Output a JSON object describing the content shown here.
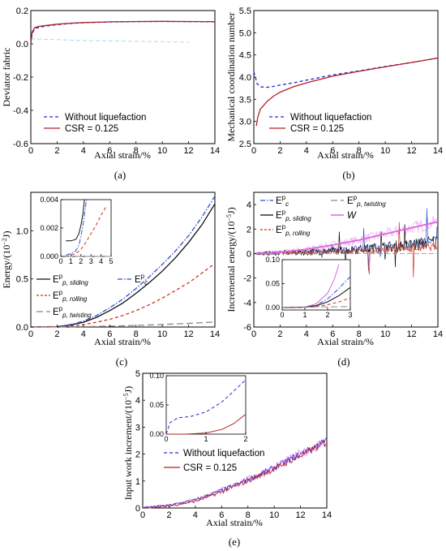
{
  "figure": {
    "captions": [
      "(a)",
      "(b)",
      "(c)",
      "(d)",
      "(e)"
    ]
  },
  "colors": {
    "without": "#2a2ad6",
    "csr": "#b22222",
    "sliding": "#111111",
    "ec": "#2f4fcf",
    "rolling": "#cc3322",
    "twisting": "#888888",
    "w": "#dd66dd",
    "spread": "#f3a6f3"
  },
  "chart_data": [
    {
      "id": "a",
      "type": "line",
      "xlabel": "Axial strain/%",
      "ylabel": "Deviator fabric",
      "xlim": [
        0,
        14
      ],
      "ylim": [
        -0.6,
        0.2
      ],
      "xticks": [
        0,
        2,
        4,
        6,
        8,
        10,
        12,
        14
      ],
      "yticks": [
        -0.6,
        -0.4,
        -0.2,
        0.0,
        0.2
      ],
      "ytick_labels": [
        "-0.6",
        "-0.4",
        "-0.2",
        "0.0",
        "0.2"
      ],
      "legend_position": "lower-left",
      "series": [
        {
          "name": "Without liquefaction",
          "style": "dash",
          "color_key": "without",
          "x": [
            0,
            0.1,
            0.3,
            0.6,
            1,
            2,
            3,
            4,
            6,
            8,
            10,
            12,
            14
          ],
          "y": [
            0.0,
            0.06,
            0.092,
            0.098,
            0.105,
            0.115,
            0.122,
            0.127,
            0.131,
            0.133,
            0.134,
            0.133,
            0.132
          ]
        },
        {
          "name": "CSR = 0.125",
          "style": "solid",
          "color_key": "csr",
          "x": [
            0,
            0.1,
            0.3,
            0.6,
            1,
            2,
            3,
            4,
            6,
            8,
            10,
            12,
            14
          ],
          "y": [
            0.0,
            0.07,
            0.098,
            0.104,
            0.109,
            0.118,
            0.124,
            0.128,
            0.132,
            0.134,
            0.135,
            0.134,
            0.133
          ]
        }
      ]
    },
    {
      "id": "b",
      "type": "line",
      "xlabel": "Axial strain/%",
      "ylabel": "Mechanical coordination number",
      "xlim": [
        0,
        14
      ],
      "ylim": [
        2.5,
        5.5
      ],
      "xticks": [
        0,
        2,
        4,
        6,
        8,
        10,
        12,
        14
      ],
      "yticks": [
        2.5,
        3.0,
        3.5,
        4.0,
        4.5,
        5.0,
        5.5
      ],
      "ytick_labels": [
        "2.5",
        "3.0",
        "3.5",
        "4.0",
        "4.5",
        "5.0",
        "5.5"
      ],
      "legend_position": "lower-left",
      "series": [
        {
          "name": "Without liquefaction",
          "style": "dash",
          "color_key": "without",
          "x": [
            0,
            0.1,
            0.25,
            0.5,
            1,
            1.5,
            2,
            3,
            4,
            6,
            8,
            10,
            12,
            14
          ],
          "y": [
            4.12,
            4.02,
            3.85,
            3.78,
            3.77,
            3.79,
            3.82,
            3.87,
            3.93,
            4.05,
            4.14,
            4.24,
            4.33,
            4.43
          ]
        },
        {
          "name": "CSR = 0.125",
          "style": "solid",
          "color_key": "csr",
          "x": [
            0.2,
            0.3,
            0.5,
            0.8,
            1,
            1.5,
            2,
            3,
            4,
            6,
            8,
            10,
            12,
            14
          ],
          "y": [
            2.9,
            3.1,
            3.28,
            3.38,
            3.45,
            3.57,
            3.66,
            3.78,
            3.87,
            4.02,
            4.13,
            4.23,
            4.33,
            4.43
          ]
        }
      ]
    },
    {
      "id": "c",
      "type": "line",
      "xlabel": "Axial strain/%",
      "ylabel": "Energy/(10^-2 J)",
      "xlim": [
        0,
        14
      ],
      "ylim": [
        0,
        1.4
      ],
      "xticks": [
        0,
        2,
        4,
        6,
        8,
        10,
        12,
        14
      ],
      "yticks": [
        0.0,
        0.5,
        1.0
      ],
      "ytick_labels": [
        "0.0",
        "0.5",
        "1.0"
      ],
      "legend_position": "left",
      "series": [
        {
          "name": "E p, sliding",
          "style": "solid",
          "color_key": "sliding",
          "x": [
            0,
            2,
            3,
            4,
            5,
            6,
            7,
            8,
            9,
            10,
            11,
            12,
            13,
            14
          ],
          "y": [
            0,
            0.004,
            0.02,
            0.05,
            0.1,
            0.17,
            0.25,
            0.35,
            0.46,
            0.58,
            0.72,
            0.88,
            1.06,
            1.28
          ]
        },
        {
          "name": "E c",
          "style": "dashdot",
          "color_key": "ec",
          "x": [
            0,
            2,
            3,
            4,
            5,
            6,
            7,
            8,
            9,
            10,
            11,
            12,
            13,
            14
          ],
          "y": [
            0,
            0.005,
            0.025,
            0.06,
            0.12,
            0.2,
            0.29,
            0.4,
            0.52,
            0.65,
            0.79,
            0.95,
            1.14,
            1.36
          ]
        },
        {
          "name": "E p, rolling",
          "style": "dash",
          "color_key": "rolling",
          "x": [
            0,
            2,
            3,
            4,
            5,
            6,
            7,
            8,
            9,
            10,
            11,
            12,
            13,
            14
          ],
          "y": [
            0,
            0.002,
            0.01,
            0.025,
            0.05,
            0.08,
            0.12,
            0.17,
            0.23,
            0.3,
            0.38,
            0.46,
            0.56,
            0.66
          ]
        },
        {
          "name": "E p, twisting",
          "style": "longdash",
          "color_key": "twisting",
          "x": [
            0,
            2,
            4,
            6,
            8,
            10,
            12,
            14
          ],
          "y": [
            0,
            0.001,
            0.004,
            0.009,
            0.016,
            0.026,
            0.038,
            0.052
          ]
        }
      ],
      "inset": {
        "xlim": [
          0,
          5
        ],
        "ylim": [
          0,
          0.004
        ],
        "xticks": [
          0,
          1,
          2,
          3,
          4,
          5
        ],
        "yticks": [
          0.0,
          0.002,
          0.004
        ],
        "ytick_labels": [
          "0.000",
          "0.002",
          "0.004"
        ],
        "series": [
          {
            "color_key": "sliding",
            "style": "solid",
            "x": [
              0.5,
              1,
              1.5,
              1.8,
              2,
              2.2,
              2.35
            ],
            "y": [
              0.0011,
              0.0011,
              0.0012,
              0.0016,
              0.0022,
              0.003,
              0.004
            ]
          },
          {
            "color_key": "ec",
            "style": "dashdot",
            "x": [
              0.5,
              1,
              1.5,
              1.8,
              2,
              2.2,
              2.4,
              2.55
            ],
            "y": [
              0.0001,
              0.0002,
              0.0004,
              0.0008,
              0.0014,
              0.0022,
              0.0032,
              0.004
            ]
          },
          {
            "color_key": "rolling",
            "style": "dash",
            "x": [
              0.5,
              1,
              1.5,
              2,
              2.5,
              3,
              3.5,
              4,
              4.5
            ],
            "y": [
              0.0,
              0.0001,
              0.0002,
              0.0005,
              0.001,
              0.0016,
              0.0022,
              0.0029,
              0.0035
            ]
          },
          {
            "color_key": "twisting",
            "style": "longdash",
            "x": [
              0.5,
              5
            ],
            "y": [
              0.0,
              0.0
            ]
          }
        ]
      }
    },
    {
      "id": "d",
      "type": "line",
      "xlabel": "Axial strain/%",
      "ylabel": "Incremental energy/(10^-5 J)",
      "xlim": [
        0,
        14
      ],
      "ylim": [
        -6,
        5
      ],
      "xticks": [
        0,
        2,
        4,
        6,
        8,
        10,
        12,
        14
      ],
      "yticks": [
        -6,
        -4,
        -2,
        0,
        2,
        4
      ],
      "ytick_labels": [
        "-6",
        "-4",
        "-2",
        "0",
        "2",
        "4"
      ],
      "legend_position": "top",
      "series": [
        {
          "name": "E c",
          "style": "dashdot",
          "color_key": "ec"
        },
        {
          "name": "E p, sliding",
          "style": "solid",
          "color_key": "sliding"
        },
        {
          "name": "E p, rolling",
          "style": "dash",
          "color_key": "rolling"
        },
        {
          "name": "E p, twisting",
          "style": "longdash",
          "color_key": "twisting"
        },
        {
          "name": "W",
          "style": "solid",
          "color_key": "w",
          "x": [
            0,
            2,
            4,
            6,
            8,
            10,
            12,
            14
          ],
          "y": [
            0,
            0.1,
            0.35,
            0.7,
            1.1,
            1.6,
            2.1,
            2.6
          ]
        }
      ],
      "trends": {
        "sliding": {
          "x": [
            0,
            4,
            8,
            12,
            14
          ],
          "y": [
            0,
            0.1,
            0.35,
            0.7,
            1.0
          ]
        },
        "rolling": {
          "x": [
            0,
            4,
            8,
            12,
            14
          ],
          "y": [
            0,
            0.08,
            0.2,
            0.4,
            0.55
          ]
        },
        "ec": {
          "x": [
            0,
            4,
            8,
            12,
            14
          ],
          "y": [
            0,
            0.15,
            0.4,
            0.8,
            1.1
          ]
        }
      },
      "inset": {
        "xlim": [
          0,
          3
        ],
        "ylim": [
          -0.005,
          0.1
        ],
        "xticks": [
          0,
          1,
          2,
          3
        ],
        "yticks": [
          0.0,
          0.05,
          0.1
        ],
        "ytick_labels": [
          "0.00",
          "0.05",
          "0.10"
        ],
        "series": [
          {
            "color_key": "w",
            "style": "solid",
            "x": [
              0,
              1,
              1.5,
              2,
              2.3,
              2.5
            ],
            "y": [
              0.0,
              0.001,
              0.008,
              0.03,
              0.06,
              0.09
            ]
          },
          {
            "color_key": "ec",
            "style": "dashdot",
            "x": [
              0,
              1,
              1.5,
              2,
              2.5,
              3
            ],
            "y": [
              0.0,
              0.001,
              0.005,
              0.018,
              0.04,
              0.065
            ]
          },
          {
            "color_key": "sliding",
            "style": "solid",
            "x": [
              0,
              1,
              1.5,
              2,
              2.5,
              3
            ],
            "y": [
              0.0,
              0.001,
              0.004,
              0.012,
              0.025,
              0.042
            ]
          },
          {
            "color_key": "rolling",
            "style": "dash",
            "x": [
              0,
              1,
              1.5,
              2,
              2.5,
              3
            ],
            "y": [
              0.0,
              0.0005,
              0.002,
              0.006,
              0.012,
              0.02
            ]
          },
          {
            "color_key": "twisting",
            "style": "longdash",
            "x": [
              0,
              3
            ],
            "y": [
              0.001,
              0.002
            ]
          }
        ]
      }
    },
    {
      "id": "e",
      "type": "line",
      "xlabel": "Axial strain/%",
      "ylabel": "Input work increment/(10^-5 J)",
      "xlim": [
        0,
        14
      ],
      "ylim": [
        0,
        5
      ],
      "xticks": [
        0,
        2,
        4,
        6,
        8,
        10,
        12,
        14
      ],
      "yticks": [
        0,
        1,
        2,
        3,
        4,
        5
      ],
      "ytick_labels": [
        "0",
        "1",
        "2",
        "3",
        "4",
        "5"
      ],
      "legend_position": "center-right",
      "series": [
        {
          "name": "Without liquefaction",
          "style": "dash",
          "color_key": "without",
          "x": [
            0,
            2,
            4,
            6,
            8,
            10,
            12,
            14
          ],
          "y": [
            0.02,
            0.1,
            0.3,
            0.65,
            1.05,
            1.5,
            2.0,
            2.5
          ]
        },
        {
          "name": "CSR = 0.125",
          "style": "solid",
          "color_key": "csr",
          "x": [
            0,
            2,
            4,
            6,
            8,
            10,
            12,
            14
          ],
          "y": [
            0.0,
            0.07,
            0.25,
            0.6,
            1.0,
            1.45,
            1.95,
            2.45
          ]
        }
      ],
      "inset": {
        "xlim": [
          0,
          2
        ],
        "ylim": [
          0,
          0.1
        ],
        "xticks": [
          0,
          1,
          2
        ],
        "yticks": [
          0.0,
          0.05,
          0.1
        ],
        "ytick_labels": [
          "0.00",
          "0.05",
          "0.10"
        ],
        "series": [
          {
            "color_key": "without",
            "style": "dash",
            "x": [
              0,
              0.1,
              0.3,
              0.6,
              1.0,
              1.4,
              1.8,
              2.0
            ],
            "y": [
              0.0,
              0.02,
              0.028,
              0.03,
              0.038,
              0.055,
              0.08,
              0.093
            ]
          },
          {
            "color_key": "csr",
            "style": "solid",
            "x": [
              0,
              0.5,
              1.0,
              1.4,
              1.7,
              2.0
            ],
            "y": [
              0.0,
              0.0,
              0.002,
              0.008,
              0.018,
              0.034
            ]
          }
        ]
      }
    }
  ]
}
